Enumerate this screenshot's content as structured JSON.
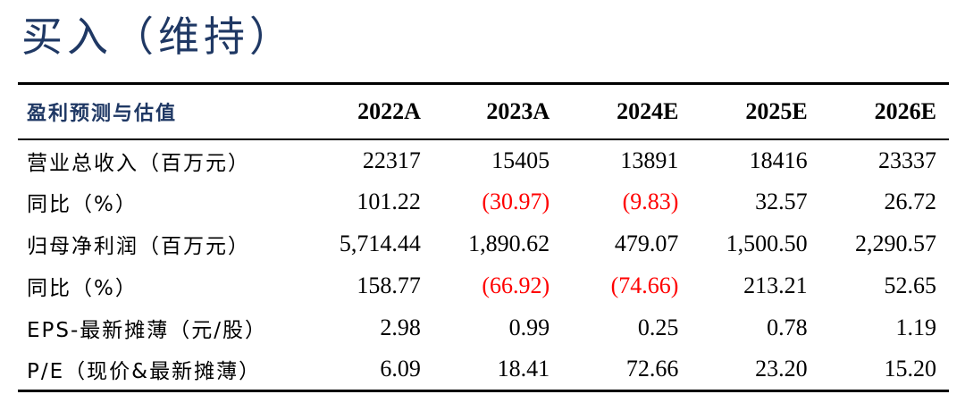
{
  "title": "买入（维持）",
  "table": {
    "header_label": "盈利预测与估值",
    "years": [
      "2022A",
      "2023A",
      "2024E",
      "2025E",
      "2026E"
    ],
    "rows": [
      {
        "label": "营业总收入（百万元）",
        "values": [
          "22317",
          "15405",
          "13891",
          "18416",
          "23337"
        ]
      },
      {
        "label": "同比（%）",
        "values": [
          "101.22",
          "(30.97)",
          "(9.83)",
          "32.57",
          "26.72"
        ]
      },
      {
        "label": "归母净利润（百万元）",
        "values": [
          "5,714.44",
          "1,890.62",
          "479.07",
          "1,500.50",
          "2,290.57"
        ]
      },
      {
        "label": "同比（%）",
        "values": [
          "158.77",
          "(66.92)",
          "(74.66)",
          "213.21",
          "52.65"
        ]
      },
      {
        "label": "EPS-最新摊薄（元/股）",
        "values": [
          "2.98",
          "0.99",
          "0.25",
          "0.78",
          "1.19"
        ]
      },
      {
        "label": "P/E（现价&最新摊薄）",
        "values": [
          "6.09",
          "18.41",
          "72.66",
          "23.20",
          "15.20"
        ]
      }
    ]
  },
  "colors": {
    "title": "#1f3864",
    "negative": "#ff0000",
    "text": "#000000"
  }
}
